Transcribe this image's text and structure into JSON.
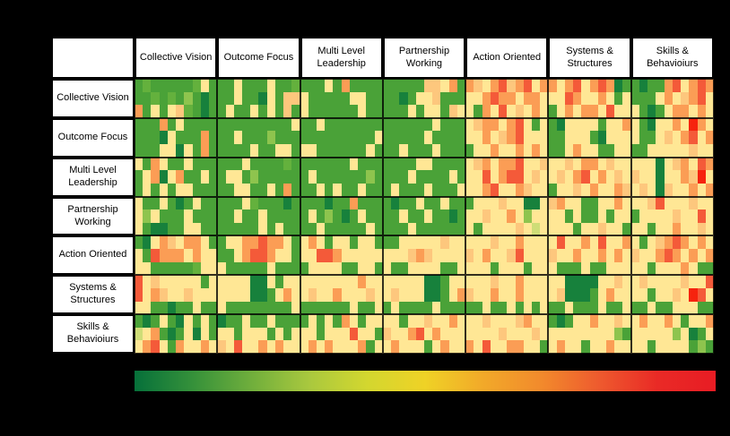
{
  "page": {
    "background": "#000000"
  },
  "matrix": {
    "corner_label": "",
    "column_headers": [
      "Collective Vision",
      "Outcome Focus",
      "Multi Level Leadership",
      "Partnership Working",
      "Action Oriented",
      "Systems & Structures",
      "Skills & Behavioiurs"
    ],
    "row_headers": [
      "Collective Vision",
      "Outcome Focus",
      "Multi Level Leadership",
      "Partnership Working",
      "Action Oriented",
      "Systems & Structures",
      "Skills & Behavioiurs"
    ]
  },
  "chart_data": {
    "type": "heatmap",
    "title": "",
    "columns": [
      "Collective Vision",
      "Outcome Focus",
      "Multi Level Leadership",
      "Partnership Working",
      "Action Oriented",
      "Systems & Structures",
      "Skills & Behavioiurs"
    ],
    "rows": [
      "Collective Vision",
      "Outcome Focus",
      "Multi Level Leadership",
      "Partnership Working",
      "Action Oriented",
      "Systems & Structures",
      "Skills & Behavioiurs"
    ],
    "block_grid": {
      "rows": 7,
      "cols": 7
    },
    "cells_per_block": {
      "rows": 3,
      "cols": 10
    },
    "palette": {
      "A": "#17813c",
      "B": "#4aa238",
      "C": "#64b13d",
      "D": "#8ec44e",
      "E": "#cedd77",
      "F": "#ffe795",
      "G": "#fdc77d",
      "H": "#fb9d55",
      "I": "#f45a39",
      "J": "#f6230e"
    },
    "code_values": {
      "A": 1,
      "B": 2,
      "C": 3,
      "D": 4,
      "E": 5,
      "F": 6,
      "G": 7,
      "H": 8,
      "I": 9,
      "J": 10
    },
    "grid_codes": [
      "BCBBBBBCFBBBFBBBFBBCBBBFBHBBBBBBBBBGGFHBHGFHIGHIFHHFHIFHIHABBABBHIFHIH",
      "BBCBCBDBABBBFBBAFBGGFBBBBBFFBBBBABFFGBBBFFHIHHFHHFFFIHFFHFBFBBBFHFGHIF",
      "HBFBFGCBABBFBBFBFBGBFBBBBBBFBBBBBFBFFBGFFBHFIFGFHFBFHFHHFIFFFBABFHHFHF",
      "BBBHBFBBBBBBBBBBBBBFBBFBBBBBBBBBBBBBFBBBFGHHFHIFBFBAFFFFBFFHFBAFFHFJHF",
      "BBBAFBBBHBBBFBBBDBBBBBBBBBBBBFBBBBBFBBBBFFHFGHIFFFBBFFFBAFFFFBBFGFHIFH",
      "BBBFFAFBHBBBBBFBBFFBFFBBBBBBFBBBFBBBFBBBBFFHFFHFHFBBFHFFBBFFBBFFFFFGFF",
      "FBHFBBFBBBBBBFBBBBCBBBBBBBFBBBBBBBFFBBBBFGHFHHIFFGFFGFHHFGFFFFFAFGHFIH",
      "BFHAFHBBFBBFFBDBBBBBBFBBBBBBDBBBBFBBBBFBFFIFHIIFGFFGFHIFHFGFGFFAFFHGJF",
      "BFBFBFFBBBBBFFBBFBHBBBFBFBBFBBBFBBBFBBBFFFHIFFHGFFBFFGFHFFHGFGFAGFFHFH",
      "FBBFBABFBBBBBFCBBBABBBBABBHBBBBABBFBBFBBBFFFGFFAAFGHFFBBFFHFFFGIFFFGFF",
      "FDFBBBFBBBBBFBBFBBBBBFBDBABFBBBBFBBFBBABFFGFFHFDFFFFBFBBFBFFBFFFFGFFIF",
      "FBAABBFFBBBBBBBFBFBBBBFBBBBBFBBBBFBBBBBBFBFFFFGFEFFFFBFFGFFBFFBFFHFFGF",
      "BAFHGFHHFBBFFHHIHHFBFHFBFFBFFBBBFFFFFGFFFFFGFFHFFFFIFFHFIFFHFBFGHIHFHF",
      "FBIHHHFHFFBBFHIIHFFBFFIIHFFFFFFFFGHGFFFFGFHFFGIFFFGFFHFFHFHFGFFHIHFHFH",
      "FFBBBBBCFFFBBBBBFBBBBFFFFBBFFBFBBFFFFBBFFFFBFFFBFFFBBBFBBFFFFFBFFFHFBB",
      "IFGFFFFFBFFFFFAAFBFFFFFFFFFHFFFFFFFAABFFFFFGFFHFFFFFAAAAFFGFFGFFFFGFFI",
      "IFHGFFGFFFFFFFAABFHFFGFFHFFFGFFGFFFAABFHGFFHFFHFFFFGAAABFHFFFFBFFGFJIF",
      "FFBBABBFBBFBBBBBBBBFBBBBBBFBBFBFBBBBFBBBBBFBBFBFBFBBFBBBFBBFBBFBBFFFBB",
      "BABFBAFBFBABBFBBFBBBBFBFBHFBFFFFBFFGFFHFFFGFFFGHFFBABFFHFFGFFHFFHFBFFH",
      "EFHBABFAFBFFBFFFBFBFFFBFFFIFFBGFFHIFHFFFFFFFGFFFGFFFFFFFFFDBFFFFFDFABF",
      "FHIFBHFFHFGFIFFHFHFFFHFHFFFHBFFHFFFBFHFFHFIFFHHFFBFHFFBFFHFFFFBFFFFBDB"
    ],
    "legend": {
      "orientation": "horizontal",
      "gradient_stops": [
        "#06703a",
        "#35913a",
        "#6fae3c",
        "#a9c83e",
        "#d3d72f",
        "#efd226",
        "#f2a929",
        "#f28a2c",
        "#ee5a2e",
        "#e92a26",
        "#e81c24"
      ]
    }
  }
}
